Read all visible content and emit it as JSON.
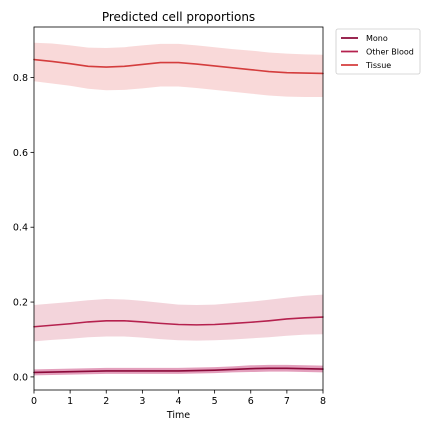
{
  "chart_data": {
    "type": "line",
    "title": "Predicted cell proportions",
    "xlabel": "Time",
    "ylabel": "",
    "xlim": [
      0,
      8
    ],
    "ylim": [
      -0.035,
      0.935
    ],
    "x_ticks": [
      "0",
      "1",
      "2",
      "3",
      "4",
      "5",
      "6",
      "7",
      "8"
    ],
    "y_ticks": [
      "0.0",
      "0.2",
      "0.4",
      "0.6",
      "0.8"
    ],
    "grid": false,
    "legend_position": "outside-top-right",
    "x": [
      0,
      0.5,
      1,
      1.5,
      2,
      2.5,
      3,
      3.5,
      4,
      4.5,
      5,
      5.5,
      6,
      6.5,
      7,
      7.5,
      8
    ],
    "series": [
      {
        "name": "Mono",
        "color": "#8b0a3a",
        "band_color": "#c8407a",
        "values": [
          0.012,
          0.013,
          0.014,
          0.015,
          0.016,
          0.016,
          0.016,
          0.016,
          0.016,
          0.017,
          0.018,
          0.02,
          0.022,
          0.023,
          0.023,
          0.022,
          0.021
        ],
        "lower": [
          0.004,
          0.005,
          0.006,
          0.007,
          0.008,
          0.008,
          0.008,
          0.008,
          0.008,
          0.009,
          0.01,
          0.012,
          0.013,
          0.014,
          0.014,
          0.013,
          0.012
        ],
        "upper": [
          0.02,
          0.021,
          0.022,
          0.023,
          0.024,
          0.024,
          0.024,
          0.024,
          0.024,
          0.025,
          0.026,
          0.028,
          0.031,
          0.032,
          0.032,
          0.031,
          0.03
        ]
      },
      {
        "name": "Other Blood",
        "color": "#b5214e",
        "band_color": "#e7a9b8",
        "values": [
          0.134,
          0.138,
          0.142,
          0.147,
          0.15,
          0.15,
          0.147,
          0.143,
          0.14,
          0.139,
          0.14,
          0.143,
          0.146,
          0.15,
          0.155,
          0.158,
          0.16
        ],
        "lower": [
          0.095,
          0.099,
          0.102,
          0.106,
          0.108,
          0.108,
          0.105,
          0.101,
          0.098,
          0.097,
          0.098,
          0.1,
          0.103,
          0.106,
          0.11,
          0.113,
          0.114
        ],
        "upper": [
          0.192,
          0.196,
          0.2,
          0.205,
          0.208,
          0.207,
          0.203,
          0.198,
          0.193,
          0.192,
          0.193,
          0.197,
          0.201,
          0.206,
          0.212,
          0.217,
          0.22
        ]
      },
      {
        "name": "Tissue",
        "color": "#d43d3d",
        "band_color": "#f3b3b3",
        "values": [
          0.848,
          0.843,
          0.837,
          0.83,
          0.828,
          0.83,
          0.835,
          0.84,
          0.84,
          0.836,
          0.831,
          0.826,
          0.821,
          0.816,
          0.813,
          0.812,
          0.811
        ],
        "lower": [
          0.79,
          0.784,
          0.778,
          0.77,
          0.766,
          0.767,
          0.771,
          0.776,
          0.776,
          0.772,
          0.767,
          0.762,
          0.757,
          0.752,
          0.749,
          0.748,
          0.748
        ],
        "upper": [
          0.893,
          0.891,
          0.886,
          0.88,
          0.879,
          0.881,
          0.886,
          0.89,
          0.89,
          0.886,
          0.881,
          0.876,
          0.872,
          0.867,
          0.864,
          0.862,
          0.861
        ]
      }
    ]
  }
}
